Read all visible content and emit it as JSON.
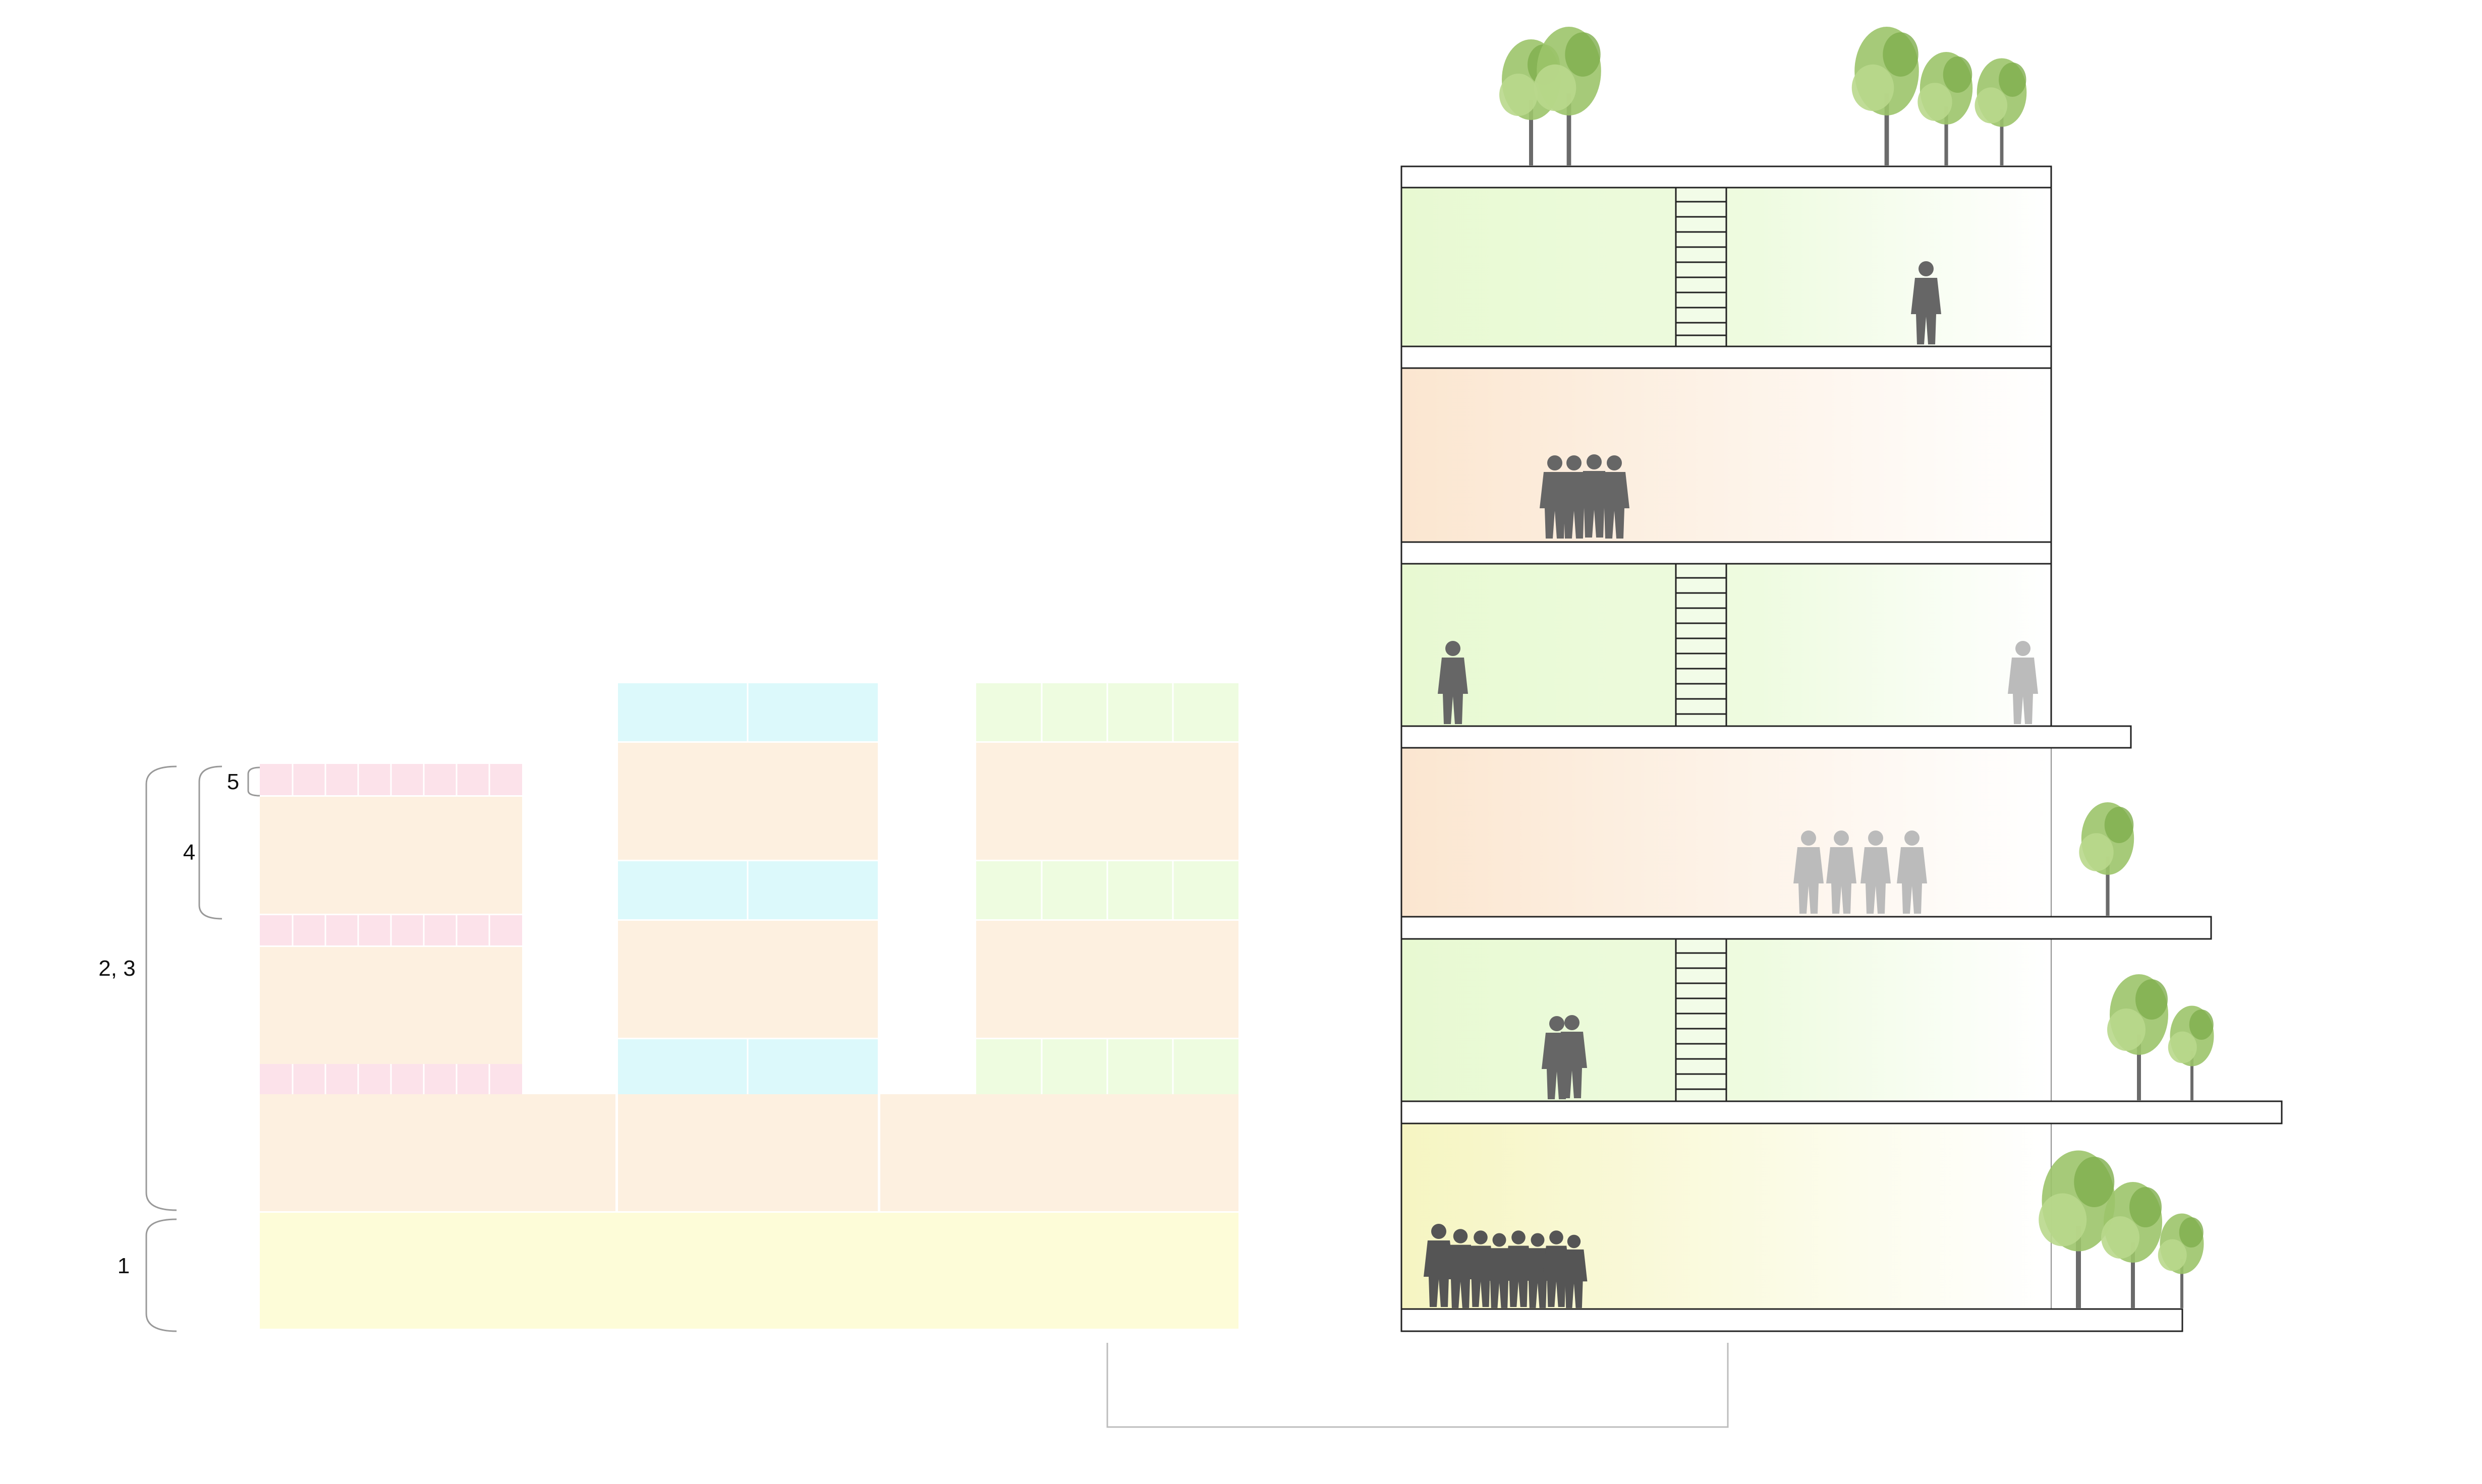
{
  "labels": {
    "level_1": "1",
    "level_2_3": "2, 3",
    "level_4": "4",
    "level_5": "5"
  },
  "colors": {
    "ground_zone": "#fdfcd8",
    "commercial_zone": "#fdf0e0",
    "pink_zone": "#fce2ea",
    "cyan_zone": "#dcf9fb",
    "green_zone": "#eefce0",
    "section_green": "#e9f9d4",
    "section_peach": "#fbe9d6",
    "section_yellow": "#f8f7c9",
    "silhouette": "#555555",
    "tree_foliage": "#9cc46a",
    "line": "#222222"
  },
  "icons": [
    "person-silhouette",
    "tree-icon",
    "ladder-stair"
  ]
}
